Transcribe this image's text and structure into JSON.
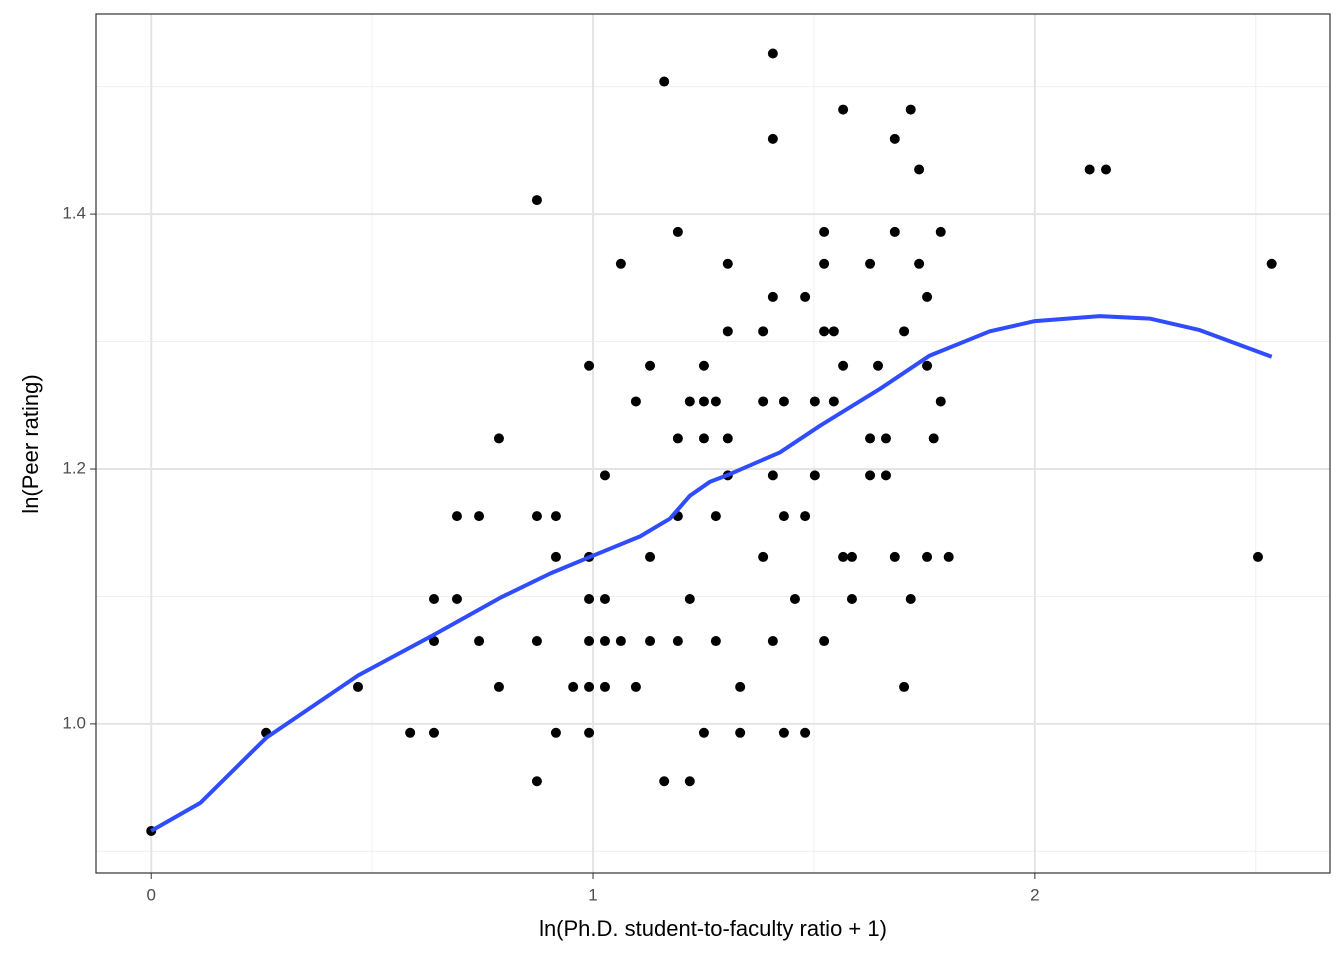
{
  "chart_data": {
    "type": "scatter",
    "xlabel": "ln(Ph.D. student-to-faculty ratio + 1)",
    "ylabel": "ln(Peer rating)",
    "xlim": [
      -0.125,
      2.668
    ],
    "ylim": [
      0.883,
      1.557
    ],
    "xticks": [
      0,
      1,
      2
    ],
    "yticks": [
      {
        "value": 1.0,
        "label": "1.0"
      },
      {
        "value": 1.2,
        "label": "1.2"
      },
      {
        "value": 1.4,
        "label": "1.4"
      }
    ],
    "xminor": [
      0.5,
      1.5,
      2.5
    ],
    "yminor": [
      0.9,
      1.1,
      1.3,
      1.5
    ],
    "grid": true,
    "color": "#000000",
    "x": [
      0,
      0.26,
      0.468,
      0.586,
      0.64,
      0.64,
      0.64,
      0.692,
      0.692,
      0.742,
      0.742,
      0.787,
      0.787,
      0.873,
      0.873,
      0.873,
      0.873,
      0.916,
      0.916,
      0.916,
      0.955,
      0.991,
      0.991,
      0.991,
      0.991,
      0.991,
      0.991,
      1.027,
      1.027,
      1.027,
      1.027,
      1.063,
      1.063,
      1.097,
      1.097,
      1.129,
      1.129,
      1.129,
      1.161,
      1.161,
      1.192,
      1.192,
      1.192,
      1.192,
      1.219,
      1.219,
      1.219,
      1.251,
      1.251,
      1.251,
      1.251,
      1.278,
      1.278,
      1.278,
      1.305,
      1.305,
      1.305,
      1.305,
      1.333,
      1.333,
      1.385,
      1.385,
      1.385,
      1.407,
      1.407,
      1.407,
      1.407,
      1.407,
      1.432,
      1.432,
      1.432,
      1.457,
      1.48,
      1.48,
      1.48,
      1.502,
      1.502,
      1.523,
      1.523,
      1.523,
      1.523,
      1.545,
      1.545,
      1.566,
      1.566,
      1.566,
      1.586,
      1.586,
      1.627,
      1.627,
      1.627,
      1.645,
      1.663,
      1.663,
      1.683,
      1.683,
      1.683,
      1.704,
      1.704,
      1.719,
      1.719,
      1.738,
      1.738,
      1.756,
      1.756,
      1.756,
      1.771,
      1.787,
      1.787,
      1.805,
      2.124,
      2.161,
      2.505,
      2.536
    ],
    "y": [
      0.916,
      0.993,
      1.029,
      0.993,
      1.098,
      1.065,
      0.993,
      1.163,
      1.098,
      1.163,
      1.065,
      1.224,
      1.029,
      1.411,
      1.163,
      1.065,
      0.955,
      1.163,
      1.131,
      0.993,
      1.029,
      1.131,
      1.098,
      1.065,
      1.029,
      0.993,
      1.281,
      1.195,
      1.098,
      1.065,
      1.029,
      1.361,
      1.065,
      1.253,
      1.029,
      1.281,
      1.131,
      1.065,
      1.504,
      0.955,
      1.386,
      1.224,
      1.163,
      1.065,
      1.253,
      1.098,
      0.955,
      1.281,
      1.253,
      1.224,
      0.993,
      1.253,
      1.163,
      1.065,
      1.361,
      1.308,
      1.224,
      1.195,
      1.029,
      0.993,
      1.308,
      1.253,
      1.131,
      1.526,
      1.459,
      1.335,
      1.195,
      1.065,
      1.253,
      1.163,
      0.993,
      1.098,
      1.335,
      1.163,
      0.993,
      1.253,
      1.195,
      1.386,
      1.361,
      1.308,
      1.065,
      1.308,
      1.253,
      1.482,
      1.281,
      1.131,
      1.131,
      1.098,
      1.361,
      1.224,
      1.195,
      1.281,
      1.224,
      1.195,
      1.459,
      1.386,
      1.131,
      1.308,
      1.029,
      1.482,
      1.098,
      1.435,
      1.361,
      1.335,
      1.281,
      1.131,
      1.224,
      1.386,
      1.253,
      1.131,
      1.435,
      1.435,
      1.131,
      1.361
    ],
    "smooth": {
      "color": "#2f4cff",
      "x": [
        0,
        0.111,
        0.26,
        0.468,
        0.64,
        0.79,
        0.903,
        1.0,
        1.106,
        1.174,
        1.219,
        1.265,
        1.31,
        1.423,
        1.514,
        1.65,
        1.762,
        1.898,
        2.0,
        2.147,
        2.26,
        2.373,
        2.536
      ],
      "y": [
        0.916,
        0.938,
        0.989,
        1.038,
        1.07,
        1.099,
        1.118,
        1.132,
        1.147,
        1.161,
        1.179,
        1.19,
        1.196,
        1.213,
        1.234,
        1.263,
        1.289,
        1.308,
        1.316,
        1.32,
        1.318,
        1.309,
        1.288
      ]
    }
  }
}
